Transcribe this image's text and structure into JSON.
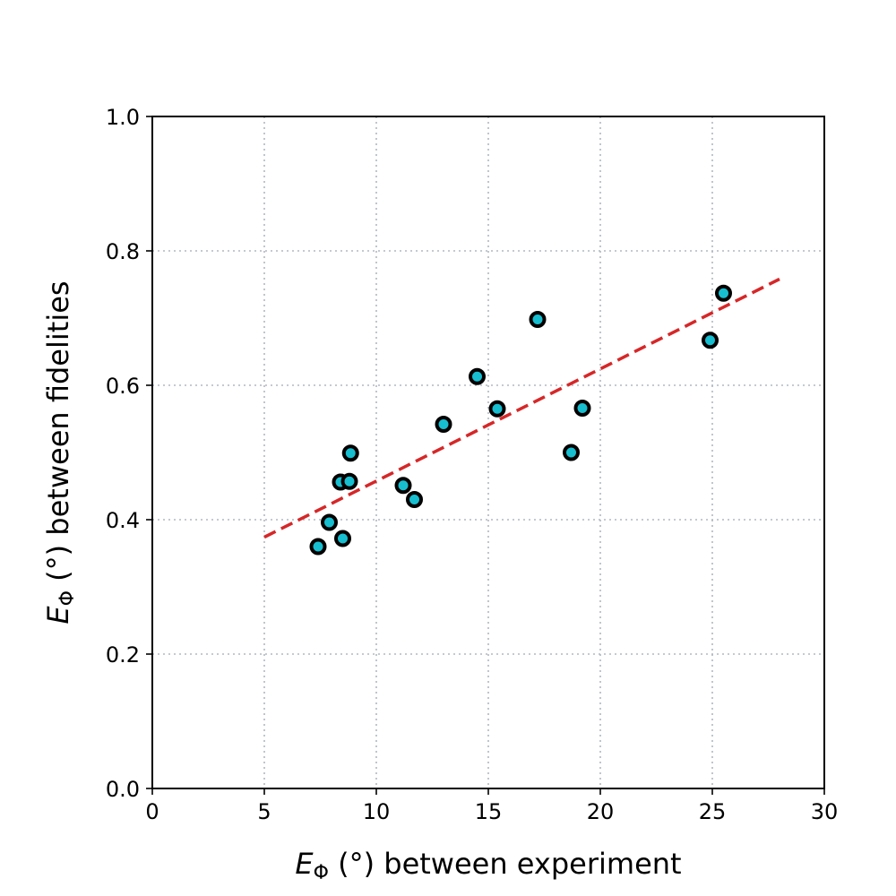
{
  "chart_data": {
    "type": "scatter",
    "xlabel": {
      "symbol": "E",
      "subscript": "Φ",
      "rest": " (°) between experiment"
    },
    "ylabel": {
      "symbol": "E",
      "subscript": "Φ",
      "rest": " (°) between fidelities"
    },
    "xlim": [
      0,
      30
    ],
    "ylim": [
      0.0,
      1.0
    ],
    "x_ticks": [
      "0",
      "5",
      "10",
      "15",
      "20",
      "25",
      "30"
    ],
    "y_ticks": [
      "0.0",
      "0.2",
      "0.4",
      "0.6",
      "0.8",
      "1.0"
    ],
    "grid": true,
    "points": [
      {
        "x": 7.4,
        "y": 0.36
      },
      {
        "x": 7.9,
        "y": 0.396
      },
      {
        "x": 8.4,
        "y": 0.456
      },
      {
        "x": 8.5,
        "y": 0.372
      },
      {
        "x": 8.8,
        "y": 0.457
      },
      {
        "x": 8.85,
        "y": 0.499
      },
      {
        "x": 11.2,
        "y": 0.451
      },
      {
        "x": 11.7,
        "y": 0.43
      },
      {
        "x": 13.0,
        "y": 0.542
      },
      {
        "x": 14.5,
        "y": 0.613
      },
      {
        "x": 15.4,
        "y": 0.565
      },
      {
        "x": 17.2,
        "y": 0.698
      },
      {
        "x": 18.7,
        "y": 0.5
      },
      {
        "x": 19.2,
        "y": 0.566
      },
      {
        "x": 24.9,
        "y": 0.667
      },
      {
        "x": 25.5,
        "y": 0.737
      }
    ],
    "fit_line": {
      "x": [
        5.0,
        28.0
      ],
      "y": [
        0.374,
        0.758
      ]
    },
    "colors": {
      "marker_fill": "#17becf",
      "marker_edge": "#000000",
      "fit_line": "#d62728",
      "grid": "#b0b8c0",
      "axes": "#000000"
    }
  }
}
